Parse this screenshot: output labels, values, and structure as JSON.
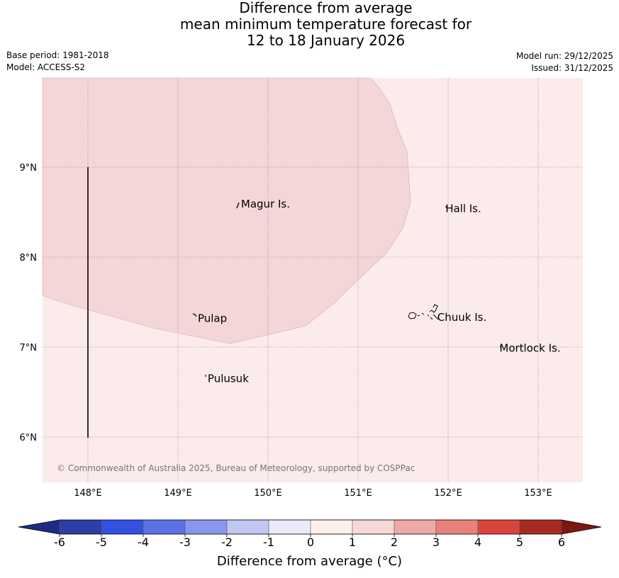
{
  "title": {
    "line1": "Difference from average",
    "line2": "mean minimum temperature forecast for",
    "line3": "12 to 18 January 2026"
  },
  "meta": {
    "base_period": "Base period: 1981-2018",
    "model": "Model: ACCESS-S2",
    "model_run": "Model run: 29/12/2025",
    "issued": "Issued: 31/12/2025"
  },
  "map": {
    "lat_labels": [
      {
        "lat": 9,
        "label": "9°N"
      },
      {
        "lat": 8,
        "label": "8°N"
      },
      {
        "lat": 7,
        "label": "7°N"
      },
      {
        "lat": 6,
        "label": "6°N"
      }
    ],
    "lon_labels": [
      {
        "lon": 148,
        "label": "148°E"
      },
      {
        "lon": 149,
        "label": "149°E"
      },
      {
        "lon": 150,
        "label": "150°E"
      },
      {
        "lon": 151,
        "label": "151°E"
      },
      {
        "lon": 152,
        "label": "152°E"
      },
      {
        "lon": 153,
        "label": "153°E"
      }
    ],
    "places": [
      {
        "name": "Magur Is.",
        "lon": 149.7,
        "lat": 8.55
      },
      {
        "name": "Hall Is.",
        "lon": 151.97,
        "lat": 8.5
      },
      {
        "name": "Pulap",
        "lon": 149.22,
        "lat": 7.28
      },
      {
        "name": "Chuuk Is.",
        "lon": 151.88,
        "lat": 7.29
      },
      {
        "name": "Mortlock Is.",
        "lon": 152.57,
        "lat": 6.95
      },
      {
        "name": "Pulusuk",
        "lon": 149.33,
        "lat": 6.61
      }
    ],
    "shading": [
      {
        "range": "0 to 1",
        "color": "#fbebea"
      },
      {
        "range": "1 to 2",
        "color": "#f5d6d6"
      }
    ],
    "copyright": "© Commonwealth of Australia 2025, Bureau of Meteorology, supported by COSPPac"
  },
  "colorbar": {
    "ticks": [
      "-6",
      "-5",
      "-4",
      "-3",
      "-2",
      "-1",
      "0",
      "1",
      "2",
      "3",
      "4",
      "5",
      "6"
    ],
    "colors": [
      "#2b3fa6",
      "#3351e0",
      "#5d71e6",
      "#8797ee",
      "#c1c7f3",
      "#e9ebfb",
      "#fdefed",
      "#f6d9d7",
      "#eeaaa6",
      "#e8817c",
      "#d9453c",
      "#a72a20"
    ],
    "under_color": "#1c2c85",
    "over_color": "#7a1812",
    "label": "Difference from average (°C)"
  }
}
